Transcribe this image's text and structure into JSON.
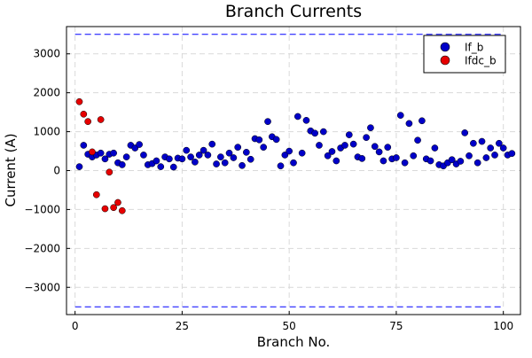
{
  "chart_data": {
    "type": "scatter",
    "title": "Branch Currents",
    "xlabel": "Branch No.",
    "ylabel": "Current (A)",
    "xlim": [
      -2,
      104
    ],
    "ylim": [
      -3700,
      3700
    ],
    "xticks": [
      0,
      25,
      50,
      75,
      100
    ],
    "yticks": [
      -3000,
      -2000,
      -1000,
      0,
      1000,
      2000,
      3000
    ],
    "ytick_labels": [
      "−3000",
      "−2000",
      "−1000",
      "0",
      "1000",
      "2000",
      "3000"
    ],
    "grid": true,
    "legend_position": "top-right",
    "limit_lines": [
      {
        "y": 3500,
        "color": "#0000ff"
      },
      {
        "y": -3500,
        "color": "#0000ff"
      }
    ],
    "series": [
      {
        "name": "If_b",
        "color": "#0000c8",
        "points": [
          [
            1,
            100
          ],
          [
            2,
            650
          ],
          [
            3,
            420
          ],
          [
            4,
            350
          ],
          [
            5,
            400
          ],
          [
            6,
            450
          ],
          [
            7,
            300
          ],
          [
            8,
            420
          ],
          [
            9,
            450
          ],
          [
            10,
            200
          ],
          [
            11,
            150
          ],
          [
            12,
            350
          ],
          [
            13,
            650
          ],
          [
            14,
            580
          ],
          [
            15,
            670
          ],
          [
            16,
            400
          ],
          [
            17,
            150
          ],
          [
            18,
            180
          ],
          [
            19,
            250
          ],
          [
            20,
            100
          ],
          [
            21,
            350
          ],
          [
            22,
            300
          ],
          [
            23,
            90
          ],
          [
            24,
            320
          ],
          [
            25,
            300
          ],
          [
            26,
            520
          ],
          [
            27,
            350
          ],
          [
            28,
            220
          ],
          [
            29,
            400
          ],
          [
            30,
            520
          ],
          [
            31,
            400
          ],
          [
            32,
            680
          ],
          [
            33,
            170
          ],
          [
            34,
            350
          ],
          [
            35,
            200
          ],
          [
            36,
            450
          ],
          [
            37,
            330
          ],
          [
            38,
            600
          ],
          [
            39,
            130
          ],
          [
            40,
            470
          ],
          [
            41,
            290
          ],
          [
            42,
            820
          ],
          [
            43,
            790
          ],
          [
            44,
            600
          ],
          [
            45,
            1260
          ],
          [
            46,
            870
          ],
          [
            47,
            800
          ],
          [
            48,
            120
          ],
          [
            49,
            400
          ],
          [
            50,
            500
          ],
          [
            51,
            200
          ],
          [
            52,
            1390
          ],
          [
            53,
            450
          ],
          [
            54,
            1290
          ],
          [
            55,
            1020
          ],
          [
            56,
            960
          ],
          [
            57,
            650
          ],
          [
            58,
            1000
          ],
          [
            59,
            380
          ],
          [
            60,
            490
          ],
          [
            61,
            250
          ],
          [
            62,
            580
          ],
          [
            63,
            650
          ],
          [
            64,
            920
          ],
          [
            65,
            680
          ],
          [
            66,
            350
          ],
          [
            67,
            310
          ],
          [
            68,
            850
          ],
          [
            69,
            1100
          ],
          [
            70,
            620
          ],
          [
            71,
            480
          ],
          [
            72,
            250
          ],
          [
            73,
            600
          ],
          [
            74,
            300
          ],
          [
            75,
            330
          ],
          [
            76,
            1420
          ],
          [
            77,
            200
          ],
          [
            78,
            1210
          ],
          [
            79,
            380
          ],
          [
            80,
            780
          ],
          [
            81,
            1280
          ],
          [
            82,
            300
          ],
          [
            83,
            250
          ],
          [
            84,
            580
          ],
          [
            85,
            150
          ],
          [
            86,
            120
          ],
          [
            87,
            200
          ],
          [
            88,
            280
          ],
          [
            89,
            170
          ],
          [
            90,
            240
          ],
          [
            91,
            970
          ],
          [
            92,
            380
          ],
          [
            93,
            700
          ],
          [
            94,
            200
          ],
          [
            95,
            750
          ],
          [
            96,
            330
          ],
          [
            97,
            580
          ],
          [
            98,
            400
          ],
          [
            99,
            700
          ],
          [
            100,
            580
          ],
          [
            101,
            400
          ],
          [
            102,
            440
          ]
        ]
      },
      {
        "name": "Ifdc_b",
        "color": "#e60000",
        "points": [
          [
            1,
            1770
          ],
          [
            2,
            1450
          ],
          [
            3,
            1260
          ],
          [
            4,
            480
          ],
          [
            5,
            -620
          ],
          [
            6,
            1310
          ],
          [
            7,
            -980
          ],
          [
            8,
            -40
          ],
          [
            9,
            -950
          ],
          [
            10,
            -820
          ],
          [
            11,
            -1030
          ]
        ]
      }
    ]
  }
}
